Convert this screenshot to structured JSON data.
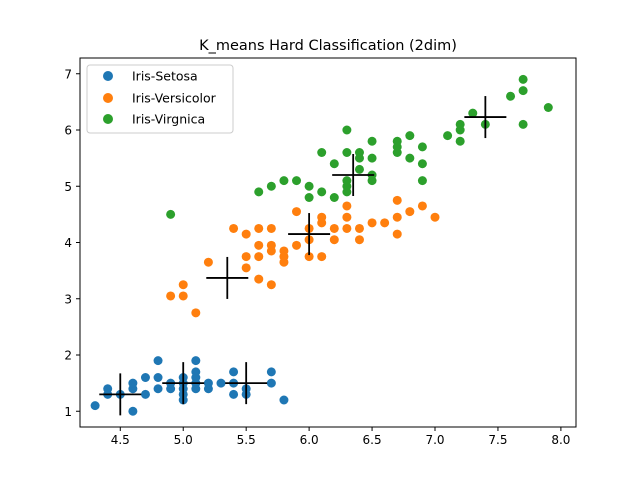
{
  "chart_data": {
    "type": "scatter",
    "title": "K_means Hard Classification (2dim)",
    "xlabel": "",
    "ylabel": "",
    "xlim": [
      4.18,
      8.12
    ],
    "ylim": [
      0.72,
      7.28
    ],
    "xticks": [
      4.5,
      5.0,
      5.5,
      6.0,
      6.5,
      7.0,
      7.5,
      8.0
    ],
    "xtick_labels": [
      "4.5",
      "5.0",
      "5.5",
      "6.0",
      "6.5",
      "7.0",
      "7.5",
      "8.0"
    ],
    "yticks": [
      1,
      2,
      3,
      4,
      5,
      6,
      7
    ],
    "ytick_labels": [
      "1",
      "2",
      "3",
      "4",
      "5",
      "6",
      "7"
    ],
    "grid": false,
    "legend_position": "top-left",
    "series": [
      {
        "name": "Iris-Setosa",
        "color": "#1f77b4",
        "points": [
          [
            4.3,
            1.1
          ],
          [
            4.4,
            1.3
          ],
          [
            4.4,
            1.4
          ],
          [
            4.5,
            1.3
          ],
          [
            4.6,
            1.0
          ],
          [
            4.6,
            1.4
          ],
          [
            4.6,
            1.5
          ],
          [
            4.7,
            1.3
          ],
          [
            4.7,
            1.6
          ],
          [
            4.8,
            1.4
          ],
          [
            4.8,
            1.6
          ],
          [
            4.8,
            1.9
          ],
          [
            4.9,
            1.4
          ],
          [
            4.9,
            1.5
          ],
          [
            5.0,
            1.2
          ],
          [
            5.0,
            1.3
          ],
          [
            5.0,
            1.4
          ],
          [
            5.0,
            1.5
          ],
          [
            5.0,
            1.6
          ],
          [
            5.1,
            1.4
          ],
          [
            5.1,
            1.5
          ],
          [
            5.1,
            1.6
          ],
          [
            5.1,
            1.7
          ],
          [
            5.1,
            1.9
          ],
          [
            5.2,
            1.4
          ],
          [
            5.2,
            1.5
          ],
          [
            5.3,
            1.5
          ],
          [
            5.4,
            1.3
          ],
          [
            5.4,
            1.5
          ],
          [
            5.4,
            1.7
          ],
          [
            5.5,
            1.3
          ],
          [
            5.5,
            1.4
          ],
          [
            5.7,
            1.5
          ],
          [
            5.7,
            1.7
          ],
          [
            5.8,
            1.2
          ]
        ]
      },
      {
        "name": "Iris-Versicolor",
        "color": "#ff7f0e",
        "points": [
          [
            4.9,
            3.05
          ],
          [
            5.0,
            3.05
          ],
          [
            5.0,
            3.25
          ],
          [
            5.1,
            2.75
          ],
          [
            5.2,
            3.65
          ],
          [
            5.4,
            4.25
          ],
          [
            5.5,
            3.55
          ],
          [
            5.5,
            3.75
          ],
          [
            5.5,
            4.15
          ],
          [
            5.6,
            3.35
          ],
          [
            5.6,
            3.75
          ],
          [
            5.6,
            3.95
          ],
          [
            5.6,
            4.25
          ],
          [
            5.7,
            3.25
          ],
          [
            5.7,
            3.85
          ],
          [
            5.7,
            3.95
          ],
          [
            5.7,
            4.25
          ],
          [
            5.8,
            3.65
          ],
          [
            5.8,
            3.75
          ],
          [
            5.8,
            3.85
          ],
          [
            5.9,
            3.95
          ],
          [
            5.9,
            4.55
          ],
          [
            6.0,
            3.75
          ],
          [
            6.0,
            4.05
          ],
          [
            6.0,
            4.25
          ],
          [
            6.1,
            3.75
          ],
          [
            6.1,
            4.35
          ],
          [
            6.1,
            4.45
          ],
          [
            6.2,
            4.05
          ],
          [
            6.2,
            4.25
          ],
          [
            6.3,
            4.25
          ],
          [
            6.3,
            4.45
          ],
          [
            6.3,
            4.65
          ],
          [
            6.4,
            4.05
          ],
          [
            6.4,
            4.25
          ],
          [
            6.5,
            4.35
          ],
          [
            6.6,
            4.35
          ],
          [
            6.7,
            4.15
          ],
          [
            6.7,
            4.45
          ],
          [
            6.7,
            4.75
          ],
          [
            6.8,
            4.55
          ],
          [
            6.9,
            4.65
          ],
          [
            7.0,
            4.45
          ]
        ]
      },
      {
        "name": "Iris-Virgnica",
        "color": "#2ca02c",
        "points": [
          [
            4.9,
            4.5
          ],
          [
            5.6,
            4.9
          ],
          [
            5.7,
            5.0
          ],
          [
            5.8,
            5.1
          ],
          [
            5.9,
            5.1
          ],
          [
            6.0,
            4.8
          ],
          [
            6.0,
            5.0
          ],
          [
            6.1,
            4.9
          ],
          [
            6.1,
            5.6
          ],
          [
            6.2,
            4.8
          ],
          [
            6.2,
            5.4
          ],
          [
            6.3,
            4.9
          ],
          [
            6.3,
            5.0
          ],
          [
            6.3,
            5.1
          ],
          [
            6.3,
            5.6
          ],
          [
            6.3,
            6.0
          ],
          [
            6.4,
            5.3
          ],
          [
            6.4,
            5.5
          ],
          [
            6.4,
            5.6
          ],
          [
            6.5,
            5.1
          ],
          [
            6.5,
            5.2
          ],
          [
            6.5,
            5.5
          ],
          [
            6.5,
            5.8
          ],
          [
            6.7,
            5.6
          ],
          [
            6.7,
            5.7
          ],
          [
            6.7,
            5.8
          ],
          [
            6.8,
            5.5
          ],
          [
            6.8,
            5.9
          ],
          [
            6.9,
            5.1
          ],
          [
            6.9,
            5.4
          ],
          [
            6.9,
            5.7
          ],
          [
            7.1,
            5.9
          ],
          [
            7.2,
            5.8
          ],
          [
            7.2,
            6.0
          ],
          [
            7.2,
            6.1
          ],
          [
            7.3,
            6.3
          ],
          [
            7.4,
            6.1
          ],
          [
            7.6,
            6.6
          ],
          [
            7.7,
            6.1
          ],
          [
            7.7,
            6.7
          ],
          [
            7.7,
            6.9
          ],
          [
            7.9,
            6.4
          ]
        ]
      }
    ],
    "centroids": [
      [
        4.5,
        1.3
      ],
      [
        5.0,
        1.5
      ],
      [
        5.5,
        1.5
      ],
      [
        5.35,
        3.37
      ],
      [
        6.0,
        4.15
      ],
      [
        6.35,
        5.2
      ],
      [
        7.4,
        6.23
      ]
    ]
  },
  "legend": {
    "items": [
      "Iris-Setosa",
      "Iris-Versicolor",
      "Iris-Virgnica"
    ]
  }
}
